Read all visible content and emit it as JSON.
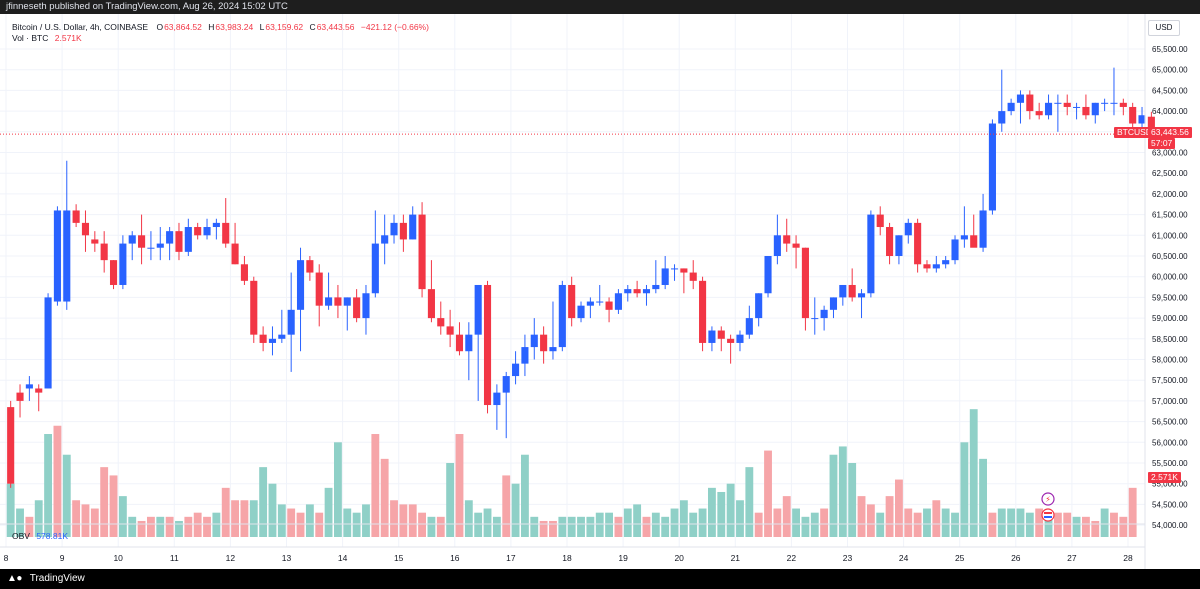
{
  "publish_bar": "jfinneseth published on TradingView.com, Aug 26, 2024 15:02 UTC",
  "footer": {
    "brand": "TradingView"
  },
  "legend": {
    "symbol": "Bitcoin / U.S. Dollar, 4h, COINBASE",
    "o_label": "O",
    "o": "63,864.52",
    "h_label": "H",
    "h": "63,983.24",
    "l_label": "L",
    "l": "63,159.62",
    "c_label": "C",
    "c": "63,443.56",
    "change": "−421.12 (−0.66%)",
    "vol_label": "Vol · BTC",
    "vol_value": "2.571K",
    "obv_label": "OBV",
    "obv_value": "578.81K"
  },
  "price_axis": {
    "currency": "USD",
    "ticks": [
      "65,500.00",
      "65,000.00",
      "64,500.00",
      "64,000.00",
      "63,500.00",
      "63,000.00",
      "62,500.00",
      "62,000.00",
      "61,500.00",
      "61,000.00",
      "60,500.00",
      "60,000.00",
      "59,500.00",
      "59,000.00",
      "58,500.00",
      "58,000.00",
      "57,500.00",
      "57,000.00",
      "56,500.00",
      "56,000.00",
      "55,500.00",
      "55,000.00",
      "54,500.00",
      "54,000.00"
    ]
  },
  "time_axis": {
    "ticks": [
      "8",
      "9",
      "10",
      "11",
      "12",
      "13",
      "14",
      "15",
      "16",
      "17",
      "18",
      "19",
      "20",
      "21",
      "22",
      "23",
      "24",
      "25",
      "26",
      "27",
      "28"
    ]
  },
  "price_tag": {
    "symbol": "BTCUSD",
    "price": "63,443.56",
    "countdown": "57:07"
  },
  "vol_tag": "2.571K",
  "colors": {
    "up": "#2962ff",
    "down": "#f23645",
    "vol_up": "#8fd0c7",
    "vol_down": "#f6a5a8",
    "bg": "#ffffff",
    "grid": "#f0f3fa"
  },
  "chart_data": {
    "type": "candlestick",
    "symbol": "BTCUSD",
    "interval": "4h",
    "x_ticks": [
      8,
      9,
      10,
      11,
      12,
      13,
      14,
      15,
      16,
      17,
      18,
      19,
      20,
      21,
      22,
      23,
      24,
      25,
      26,
      27,
      28
    ],
    "ylim": [
      53700,
      65800
    ],
    "candles": [
      [
        56850,
        57000,
        54900,
        55000
      ],
      [
        57200,
        57400,
        56600,
        57000
      ],
      [
        57300,
        57600,
        57000,
        57400
      ],
      [
        57300,
        57400,
        56750,
        57200
      ],
      [
        57300,
        59600,
        57300,
        59500
      ],
      [
        59400,
        61700,
        59300,
        61600
      ],
      [
        59400,
        62800,
        59200,
        61600
      ],
      [
        61600,
        61750,
        61200,
        61300
      ],
      [
        61300,
        61600,
        60600,
        61000
      ],
      [
        60900,
        61100,
        60600,
        60800
      ],
      [
        60800,
        61100,
        60100,
        60400
      ],
      [
        60400,
        60400,
        59700,
        59800
      ],
      [
        59800,
        61000,
        59700,
        60800
      ],
      [
        60800,
        61100,
        60400,
        61000
      ],
      [
        61000,
        61500,
        60300,
        60700
      ],
      [
        60700,
        61100,
        60400,
        60700
      ],
      [
        60700,
        61200,
        60400,
        60800
      ],
      [
        60800,
        61200,
        60400,
        61100
      ],
      [
        61100,
        61300,
        60400,
        60600
      ],
      [
        60600,
        61400,
        60500,
        61200
      ],
      [
        61200,
        61300,
        60900,
        61000
      ],
      [
        61000,
        61400,
        60900,
        61200
      ],
      [
        61200,
        61400,
        60900,
        61300
      ],
      [
        61300,
        61900,
        60700,
        60800
      ],
      [
        60800,
        61300,
        60300,
        60300
      ],
      [
        60300,
        60500,
        59800,
        59900
      ],
      [
        59900,
        60000,
        58400,
        58600
      ],
      [
        58600,
        58800,
        58200,
        58400
      ],
      [
        58400,
        58800,
        58100,
        58500
      ],
      [
        58500,
        59200,
        58400,
        58600
      ],
      [
        58600,
        60100,
        57700,
        59200
      ],
      [
        59200,
        60700,
        58200,
        60400
      ],
      [
        60400,
        60500,
        59900,
        60100
      ],
      [
        60100,
        60300,
        58800,
        59300
      ],
      [
        59300,
        60100,
        59200,
        59500
      ],
      [
        59500,
        59800,
        59000,
        59300
      ],
      [
        59300,
        59500,
        58700,
        59500
      ],
      [
        59500,
        59700,
        58900,
        59000
      ],
      [
        59000,
        59800,
        58600,
        59600
      ],
      [
        59600,
        61600,
        59500,
        60800
      ],
      [
        60800,
        61500,
        60300,
        61000
      ],
      [
        61000,
        61500,
        60800,
        61300
      ],
      [
        61300,
        61500,
        60600,
        60900
      ],
      [
        60900,
        61700,
        60900,
        61500
      ],
      [
        61500,
        61800,
        59500,
        59700
      ],
      [
        59700,
        60400,
        58900,
        59000
      ],
      [
        59000,
        59400,
        58600,
        58800
      ],
      [
        58800,
        59200,
        58300,
        58600
      ],
      [
        58600,
        58900,
        58100,
        58200
      ],
      [
        58200,
        58900,
        57500,
        58600
      ],
      [
        58600,
        59800,
        57000,
        59800
      ],
      [
        59800,
        59900,
        56700,
        56900
      ],
      [
        56900,
        57400,
        56300,
        57200
      ],
      [
        57200,
        57700,
        56100,
        57600
      ],
      [
        57600,
        58200,
        57400,
        57900
      ],
      [
        57900,
        58600,
        57600,
        58300
      ],
      [
        58300,
        59000,
        58000,
        58600
      ],
      [
        58600,
        58800,
        57900,
        58200
      ],
      [
        58200,
        59400,
        58000,
        58300
      ],
      [
        58300,
        59900,
        58200,
        59800
      ],
      [
        59800,
        60000,
        58800,
        59000
      ],
      [
        59000,
        59400,
        58900,
        59300
      ],
      [
        59300,
        59500,
        59000,
        59400
      ],
      [
        59400,
        59800,
        59300,
        59400
      ],
      [
        59400,
        59500,
        58900,
        59200
      ],
      [
        59200,
        59700,
        59100,
        59600
      ],
      [
        59600,
        59800,
        59400,
        59700
      ],
      [
        59700,
        59900,
        59500,
        59600
      ],
      [
        59600,
        59800,
        59300,
        59700
      ],
      [
        59700,
        60400,
        59600,
        59800
      ],
      [
        59800,
        60500,
        59700,
        60200
      ],
      [
        60200,
        60300,
        59900,
        60200
      ],
      [
        60200,
        60200,
        59600,
        60100
      ],
      [
        60100,
        60400,
        59700,
        59900
      ],
      [
        59900,
        60000,
        58200,
        58400
      ],
      [
        58400,
        58800,
        58200,
        58700
      ],
      [
        58700,
        58800,
        58200,
        58500
      ],
      [
        58500,
        58600,
        57900,
        58400
      ],
      [
        58400,
        58700,
        58200,
        58600
      ],
      [
        58600,
        59300,
        58500,
        59000
      ],
      [
        59000,
        59600,
        58800,
        59600
      ],
      [
        59600,
        60500,
        59500,
        60500
      ],
      [
        60500,
        61500,
        60300,
        61000
      ],
      [
        61000,
        61400,
        60600,
        60800
      ],
      [
        60800,
        61000,
        60200,
        60700
      ],
      [
        60700,
        60700,
        58700,
        59000
      ],
      [
        59000,
        59500,
        58600,
        59000
      ],
      [
        59000,
        59300,
        58700,
        59200
      ],
      [
        59200,
        59500,
        59000,
        59500
      ],
      [
        59500,
        59800,
        59300,
        59800
      ],
      [
        59800,
        60200,
        59400,
        59500
      ],
      [
        59500,
        59700,
        59000,
        59600
      ],
      [
        59600,
        61600,
        59500,
        61500
      ],
      [
        61500,
        61700,
        61000,
        61200
      ],
      [
        61200,
        61300,
        60300,
        60500
      ],
      [
        60500,
        61000,
        60300,
        61000
      ],
      [
        61000,
        61400,
        60800,
        61300
      ],
      [
        61300,
        61400,
        60100,
        60300
      ],
      [
        60300,
        60400,
        60100,
        60200
      ],
      [
        60200,
        60500,
        60100,
        60300
      ],
      [
        60300,
        60500,
        60200,
        60400
      ],
      [
        60400,
        61000,
        60300,
        60900
      ],
      [
        60900,
        61700,
        60700,
        61000
      ],
      [
        61000,
        61500,
        60800,
        60700
      ],
      [
        60700,
        62000,
        60600,
        61600
      ],
      [
        61600,
        63800,
        61500,
        63700
      ],
      [
        63700,
        65000,
        63500,
        64000
      ],
      [
        64000,
        64300,
        63900,
        64200
      ],
      [
        64200,
        64500,
        63700,
        64400
      ],
      [
        64400,
        64500,
        63800,
        64000
      ],
      [
        64000,
        64200,
        63800,
        63900
      ],
      [
        63900,
        64400,
        63800,
        64200
      ],
      [
        64200,
        64400,
        63500,
        64200
      ],
      [
        64200,
        64400,
        63900,
        64100
      ],
      [
        64100,
        64200,
        63800,
        64100
      ],
      [
        64100,
        64400,
        63800,
        63900
      ],
      [
        63900,
        64200,
        63700,
        64200
      ],
      [
        64200,
        64300,
        64000,
        64200
      ],
      [
        64200,
        65050,
        63900,
        64200
      ],
      [
        64200,
        64300,
        63900,
        64100
      ],
      [
        64100,
        64200,
        63500,
        63700
      ],
      [
        63700,
        64100,
        63400,
        63900
      ],
      [
        63864.52,
        63983.24,
        63159.62,
        63443.56
      ]
    ],
    "volume": [
      [
        55000,
        1
      ],
      [
        54400,
        1
      ],
      [
        54200,
        0
      ],
      [
        54600,
        1
      ],
      [
        56200,
        1
      ],
      [
        56400,
        0
      ],
      [
        55700,
        1
      ],
      [
        54600,
        0
      ],
      [
        54500,
        0
      ],
      [
        54400,
        0
      ],
      [
        55400,
        0
      ],
      [
        55200,
        0
      ],
      [
        54700,
        1
      ],
      [
        54200,
        1
      ],
      [
        54100,
        0
      ],
      [
        54200,
        0
      ],
      [
        54200,
        1
      ],
      [
        54200,
        0
      ],
      [
        54100,
        1
      ],
      [
        54200,
        0
      ],
      [
        54300,
        0
      ],
      [
        54200,
        0
      ],
      [
        54300,
        1
      ],
      [
        54900,
        0
      ],
      [
        54600,
        0
      ],
      [
        54600,
        0
      ],
      [
        54600,
        1
      ],
      [
        55400,
        1
      ],
      [
        55000,
        1
      ],
      [
        54500,
        1
      ],
      [
        54400,
        0
      ],
      [
        54300,
        0
      ],
      [
        54500,
        1
      ],
      [
        54300,
        0
      ],
      [
        54900,
        1
      ],
      [
        56000,
        1
      ],
      [
        54400,
        1
      ],
      [
        54300,
        1
      ],
      [
        54500,
        1
      ],
      [
        56200,
        0
      ],
      [
        55600,
        0
      ],
      [
        54600,
        0
      ],
      [
        54500,
        0
      ],
      [
        54500,
        0
      ],
      [
        54300,
        0
      ],
      [
        54200,
        1
      ],
      [
        54200,
        0
      ],
      [
        55500,
        1
      ],
      [
        56200,
        0
      ],
      [
        54600,
        1
      ],
      [
        54300,
        1
      ],
      [
        54400,
        1
      ],
      [
        54200,
        1
      ],
      [
        55200,
        0
      ],
      [
        55000,
        1
      ],
      [
        55700,
        1
      ],
      [
        54200,
        1
      ],
      [
        54100,
        0
      ],
      [
        54100,
        0
      ],
      [
        54200,
        1
      ],
      [
        54200,
        1
      ],
      [
        54200,
        1
      ],
      [
        54200,
        1
      ],
      [
        54300,
        1
      ],
      [
        54300,
        1
      ],
      [
        54200,
        0
      ],
      [
        54400,
        1
      ],
      [
        54500,
        1
      ],
      [
        54200,
        0
      ],
      [
        54300,
        1
      ],
      [
        54200,
        1
      ],
      [
        54400,
        1
      ],
      [
        54600,
        1
      ],
      [
        54300,
        1
      ],
      [
        54400,
        1
      ],
      [
        54900,
        1
      ],
      [
        54800,
        1
      ],
      [
        55000,
        1
      ],
      [
        54600,
        1
      ],
      [
        55400,
        1
      ],
      [
        54300,
        0
      ],
      [
        55800,
        0
      ],
      [
        54400,
        0
      ],
      [
        54700,
        0
      ],
      [
        54400,
        1
      ],
      [
        54200,
        1
      ],
      [
        54300,
        1
      ],
      [
        54400,
        0
      ],
      [
        55700,
        1
      ],
      [
        55900,
        1
      ],
      [
        55500,
        1
      ],
      [
        54700,
        0
      ],
      [
        54500,
        0
      ],
      [
        54300,
        1
      ],
      [
        54700,
        0
      ],
      [
        55100,
        0
      ],
      [
        54400,
        0
      ],
      [
        54300,
        0
      ],
      [
        54400,
        1
      ],
      [
        54600,
        0
      ],
      [
        54400,
        1
      ],
      [
        54300,
        1
      ],
      [
        56000,
        1
      ],
      [
        56800,
        1
      ],
      [
        55600,
        1
      ],
      [
        54300,
        0
      ],
      [
        54400,
        1
      ],
      [
        54400,
        1
      ],
      [
        54400,
        1
      ],
      [
        54300,
        1
      ],
      [
        54400,
        0
      ],
      [
        54300,
        1
      ],
      [
        54300,
        0
      ],
      [
        54300,
        0
      ],
      [
        54200,
        1
      ],
      [
        54200,
        0
      ],
      [
        54100,
        0
      ],
      [
        54400,
        1
      ],
      [
        54300,
        0
      ],
      [
        54200,
        0
      ],
      [
        54900,
        0
      ]
    ]
  }
}
